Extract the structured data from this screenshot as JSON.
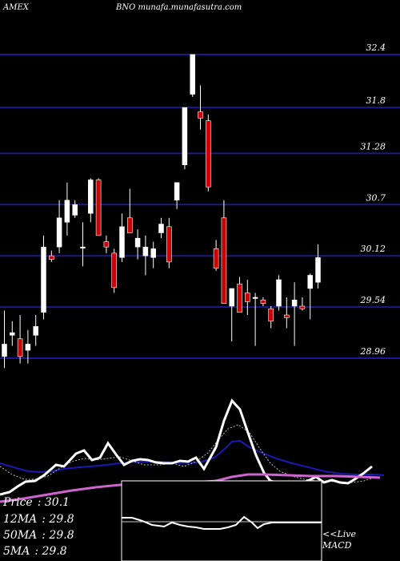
{
  "header": {
    "exchange": "AMEX",
    "source": "BNO munafa.munafasutra.com"
  },
  "legend": [
    {
      "label": "Price",
      "value": ": 30.1"
    },
    {
      "label": "12MA",
      "value": ": 29.8"
    },
    {
      "label": "50MA",
      "value": ": 29.8"
    },
    {
      "label": "5MA",
      "value": ": 29.8"
    }
  ],
  "macd": {
    "line1": "<<Live",
    "line2": "MACD"
  },
  "colors": {
    "background": "#000000",
    "gridline": "#1a1a8c",
    "bullish": "#ffffff",
    "bearish": "#cc0000",
    "ma_blue": "#1a1ab0",
    "ma_magenta": "#cc66cc"
  },
  "chart_data": {
    "type": "candlestick",
    "title": "",
    "ylim": [
      28.7,
      32.6
    ],
    "yticks": [
      32.4,
      31.8,
      31.28,
      30.7,
      30.12,
      29.54,
      28.96
    ],
    "grid": true,
    "candles": [
      {
        "o": 28.98,
        "h": 29.5,
        "l": 28.85,
        "c": 29.12
      },
      {
        "o": 29.22,
        "h": 29.38,
        "l": 29.1,
        "c": 29.25
      },
      {
        "o": 29.18,
        "h": 29.45,
        "l": 28.9,
        "c": 28.98
      },
      {
        "o": 29.05,
        "h": 29.28,
        "l": 28.9,
        "c": 29.12
      },
      {
        "o": 29.22,
        "h": 29.45,
        "l": 29.1,
        "c": 29.32
      },
      {
        "o": 29.48,
        "h": 30.35,
        "l": 29.4,
        "c": 30.22
      },
      {
        "o": 30.12,
        "h": 30.18,
        "l": 30.05,
        "c": 30.08
      },
      {
        "o": 30.22,
        "h": 30.75,
        "l": 30.15,
        "c": 30.55
      },
      {
        "o": 30.5,
        "h": 30.95,
        "l": 30.35,
        "c": 30.75
      },
      {
        "o": 30.58,
        "h": 30.75,
        "l": 30.55,
        "c": 30.7
      },
      {
        "o": 30.22,
        "h": 30.5,
        "l": 30.0,
        "c": 30.22
      },
      {
        "o": 30.6,
        "h": 31.0,
        "l": 30.5,
        "c": 30.98
      },
      {
        "o": 30.98,
        "h": 31.0,
        "l": 30.38,
        "c": 30.35
      },
      {
        "o": 30.28,
        "h": 30.35,
        "l": 30.15,
        "c": 30.22
      },
      {
        "o": 30.15,
        "h": 30.2,
        "l": 29.7,
        "c": 29.76
      },
      {
        "o": 30.1,
        "h": 30.6,
        "l": 30.05,
        "c": 30.45
      },
      {
        "o": 30.55,
        "h": 30.88,
        "l": 30.38,
        "c": 30.38
      },
      {
        "o": 30.22,
        "h": 30.42,
        "l": 30.08,
        "c": 30.32
      },
      {
        "o": 30.12,
        "h": 30.35,
        "l": 29.9,
        "c": 30.22
      },
      {
        "o": 30.1,
        "h": 30.28,
        "l": 29.98,
        "c": 30.2
      },
      {
        "o": 30.38,
        "h": 30.55,
        "l": 30.32,
        "c": 30.48
      },
      {
        "o": 30.45,
        "h": 30.55,
        "l": 29.98,
        "c": 30.05
      },
      {
        "o": 30.75,
        "h": 30.95,
        "l": 30.65,
        "c": 30.95
      },
      {
        "o": 31.15,
        "h": 31.8,
        "l": 31.1,
        "c": 31.8
      },
      {
        "o": 31.95,
        "h": 32.4,
        "l": 31.92,
        "c": 32.4
      },
      {
        "o": 31.75,
        "h": 32.05,
        "l": 31.55,
        "c": 31.68
      },
      {
        "o": 31.65,
        "h": 31.72,
        "l": 30.85,
        "c": 30.9
      },
      {
        "o": 30.2,
        "h": 30.3,
        "l": 29.95,
        "c": 29.98
      },
      {
        "o": 30.55,
        "h": 30.75,
        "l": 29.58,
        "c": 29.58
      },
      {
        "o": 29.55,
        "h": 29.75,
        "l": 29.15,
        "c": 29.75
      },
      {
        "o": 29.8,
        "h": 29.88,
        "l": 29.48,
        "c": 29.48
      },
      {
        "o": 29.7,
        "h": 29.85,
        "l": 29.45,
        "c": 29.6
      },
      {
        "o": 29.65,
        "h": 29.7,
        "l": 29.1,
        "c": 29.65
      },
      {
        "o": 29.62,
        "h": 29.65,
        "l": 29.55,
        "c": 29.58
      },
      {
        "o": 29.52,
        "h": 29.55,
        "l": 29.3,
        "c": 29.38
      },
      {
        "o": 29.55,
        "h": 29.9,
        "l": 29.5,
        "c": 29.85
      },
      {
        "o": 29.45,
        "h": 29.65,
        "l": 29.3,
        "c": 29.42
      },
      {
        "o": 29.55,
        "h": 29.82,
        "l": 29.1,
        "c": 29.62
      },
      {
        "o": 29.55,
        "h": 29.65,
        "l": 29.5,
        "c": 29.52
      },
      {
        "o": 29.75,
        "h": 29.92,
        "l": 29.4,
        "c": 29.9
      },
      {
        "o": 29.82,
        "h": 30.25,
        "l": 29.75,
        "c": 30.1
      }
    ]
  }
}
